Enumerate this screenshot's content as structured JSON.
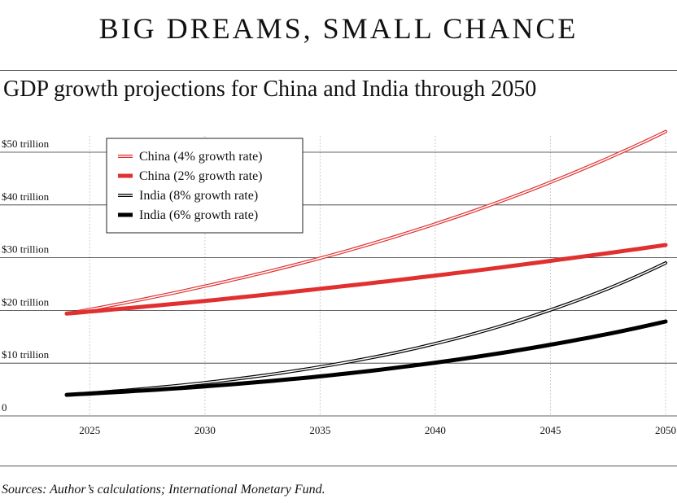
{
  "headline": "BIG DREAMS, SMALL CHANCE",
  "source": "Sources: Author’s calculations; International Monetary Fund.",
  "colors": {
    "china": "#e03030",
    "india": "#000000",
    "grid": "#333333",
    "vgrid": "#cccccc"
  },
  "chart_data": {
    "type": "line",
    "title": "GDP growth projections for China and India through 2050",
    "xlabel": "",
    "ylabel": "",
    "xlim": [
      2024,
      2050
    ],
    "ylim": [
      0,
      50
    ],
    "x_ticks": [
      2025,
      2030,
      2035,
      2040,
      2045,
      2050
    ],
    "y_ticks": [
      0,
      10,
      20,
      30,
      40,
      50
    ],
    "y_tick_labels": [
      "0",
      "$10 trillion",
      "$20 trillion",
      "$30 trillion",
      "$40 trillion",
      "$50 trillion"
    ],
    "grid": true,
    "legend_position": "top-left",
    "series": [
      {
        "name": "China (4% growth rate)",
        "color": "#e03030",
        "style": "double",
        "x": [
          2024,
          2030,
          2035,
          2040,
          2045,
          2050
        ],
        "values": [
          19.4,
          24.6,
          29.9,
          36.4,
          44.3,
          53.9
        ]
      },
      {
        "name": "China (2% growth rate)",
        "color": "#e03030",
        "style": "thick",
        "x": [
          2024,
          2030,
          2035,
          2040,
          2045,
          2050
        ],
        "values": [
          19.4,
          21.8,
          24.1,
          26.6,
          29.4,
          32.4
        ]
      },
      {
        "name": "India (8% growth rate)",
        "color": "#000000",
        "style": "double",
        "x": [
          2024,
          2030,
          2035,
          2040,
          2045,
          2050
        ],
        "values": [
          4.0,
          6.3,
          9.3,
          13.7,
          20.1,
          29.0
        ]
      },
      {
        "name": "India (6% growth rate)",
        "color": "#000000",
        "style": "thick",
        "x": [
          2024,
          2030,
          2035,
          2040,
          2045,
          2050
        ],
        "values": [
          4.0,
          5.6,
          7.5,
          10.1,
          13.5,
          17.9
        ]
      }
    ]
  }
}
